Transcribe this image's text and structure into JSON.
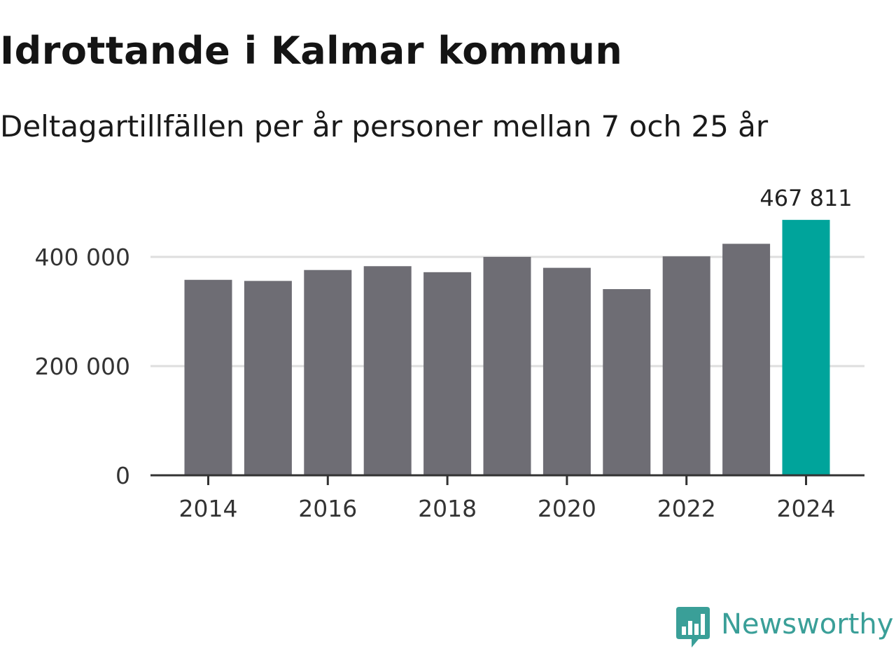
{
  "title": "Idrottande i Kalmar kommun",
  "subtitle": "Deltagartillfällen per år personer mellan 7 och 25 år",
  "brand": {
    "name": "Newsworthy",
    "icon": "newsworthy-logo-icon",
    "color": "#3a9f98"
  },
  "colors": {
    "bar": "#6e6d74",
    "highlight": "#00a49b",
    "grid": "#dedede",
    "axis": "#333333"
  },
  "chart_data": {
    "type": "bar",
    "title": "Idrottande i Kalmar kommun",
    "subtitle": "Deltagartillfällen per år personer mellan 7 och 25 år",
    "xlabel": "",
    "ylabel": "",
    "categories": [
      "2014",
      "2015",
      "2016",
      "2017",
      "2018",
      "2019",
      "2020",
      "2021",
      "2022",
      "2023",
      "2024"
    ],
    "values": [
      358000,
      356000,
      376000,
      383000,
      372000,
      400000,
      380000,
      341000,
      401000,
      424000,
      467811
    ],
    "ylim": [
      0,
      470000
    ],
    "yticks": [
      0,
      200000,
      400000
    ],
    "ytick_labels": [
      "0",
      "200 000",
      "400 000"
    ],
    "xtick_labels": [
      "2014",
      "2016",
      "2018",
      "2020",
      "2022",
      "2024"
    ],
    "highlight_index": 10,
    "highlight_label": "467 811",
    "grid": true,
    "legend": "none"
  }
}
